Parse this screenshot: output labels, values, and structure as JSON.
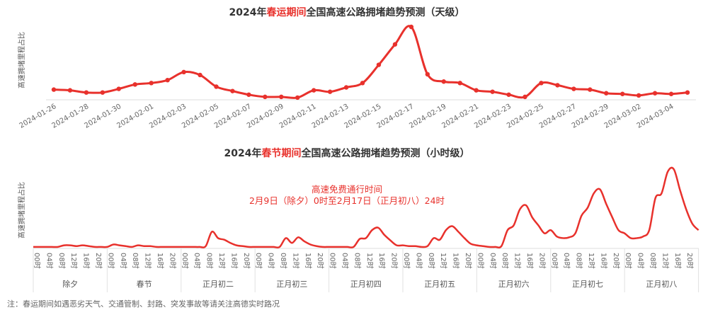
{
  "colors": {
    "line": "#e8312c",
    "axis": "#dddddd",
    "title": "#333333"
  },
  "chart_data": [
    {
      "type": "line",
      "title_parts": [
        "2024年",
        "春运期间",
        "全国高速公路拥堵趋势预测（天级）"
      ],
      "ylabel": "高速拥堵里程占比",
      "y_unit": "relative (peak = 100, estimated)",
      "x": [
        "2024-01-26",
        "2024-01-27",
        "2024-01-28",
        "2024-01-29",
        "2024-01-30",
        "2024-01-31",
        "2024-02-01",
        "2024-02-02",
        "2024-02-03",
        "2024-02-04",
        "2024-02-05",
        "2024-02-06",
        "2024-02-07",
        "2024-02-08",
        "2024-02-09",
        "2024-02-10",
        "2024-02-11",
        "2024-02-12",
        "2024-02-13",
        "2024-02-14",
        "2024-02-15",
        "2024-02-16",
        "2024-02-17",
        "2024-02-18",
        "2024-02-19",
        "2024-02-20",
        "2024-02-21",
        "2024-02-22",
        "2024-02-23",
        "2024-02-24",
        "2024-02-25",
        "2024-02-26",
        "2024-02-27",
        "2024-02-28",
        "2024-02-29",
        "2024-03-01",
        "2024-03-02",
        "2024-03-03",
        "2024-03-04",
        "2024-03-05"
      ],
      "tick_labels": [
        "2024-01-26",
        "2024-01-28",
        "2024-01-30",
        "2024-02-01",
        "2024-02-03",
        "2024-02-05",
        "2024-02-07",
        "2024-02-09",
        "2024-02-11",
        "2024-02-13",
        "2024-02-15",
        "2024-02-17",
        "2024-02-19",
        "2024-02-21",
        "2024-02-23",
        "2024-02-25",
        "2024-02-27",
        "2024-02-29",
        "2024-03-02",
        "2024-03-04"
      ],
      "values": [
        14,
        13,
        10,
        10,
        15,
        21,
        23,
        27,
        38,
        34,
        18,
        12,
        7,
        4,
        4,
        3,
        13,
        11,
        17,
        23,
        48,
        76,
        100,
        35,
        25,
        23,
        13,
        11,
        7,
        4,
        23,
        20,
        15,
        14,
        9,
        8,
        6,
        9,
        8,
        10
      ],
      "ylim": [
        0,
        100
      ],
      "grid": false
    },
    {
      "type": "line",
      "title_parts": [
        "2024年",
        "春节期间",
        "全国高速公路拥堵趋势预测（小时级）"
      ],
      "ylabel": "高速拥堵里程占比",
      "y_unit": "relative (peak = 100, estimated)",
      "annotation": [
        "高速免费通行时间",
        "2月9日（除夕）0时至2月17日（正月初八）24时"
      ],
      "days": [
        "除夕",
        "春节",
        "正月初二",
        "正月初三",
        "正月初四",
        "正月初五",
        "正月初六",
        "正月初七",
        "正月初八"
      ],
      "hour_ticks": [
        "00时",
        "04时",
        "08时",
        "12时",
        "16时",
        "20时"
      ],
      "sample_hours": [
        0,
        2,
        4,
        6,
        8,
        10,
        12,
        14,
        16,
        18,
        20,
        22
      ],
      "values": [
        [
          1,
          1,
          1,
          1,
          1,
          3,
          3,
          2,
          3,
          2,
          1,
          1
        ],
        [
          1,
          4,
          3,
          2,
          1,
          3,
          2,
          2,
          1,
          1,
          1,
          1
        ],
        [
          1,
          1,
          1,
          1,
          2,
          20,
          12,
          10,
          6,
          3,
          2,
          1
        ],
        [
          1,
          1,
          1,
          1,
          1,
          12,
          6,
          13,
          8,
          4,
          2,
          1
        ],
        [
          1,
          1,
          1,
          1,
          1,
          11,
          12,
          22,
          25,
          16,
          9,
          3
        ],
        [
          3,
          2,
          2,
          1,
          2,
          12,
          10,
          22,
          27,
          20,
          12,
          5
        ],
        [
          3,
          2,
          1,
          1,
          2,
          22,
          28,
          48,
          53,
          38,
          28,
          18
        ],
        [
          22,
          14,
          12,
          13,
          18,
          40,
          50,
          68,
          73,
          55,
          38,
          22
        ],
        [
          18,
          12,
          12,
          14,
          22,
          62,
          68,
          95,
          98,
          72,
          48,
          30
        ]
      ],
      "end_value": 22,
      "ylim": [
        0,
        100
      ],
      "grid": false
    }
  ],
  "footer": {
    "note": "注：春运期间如遇恶劣天气、交通管制、封路、突发事故等请关注高德实时路况"
  }
}
